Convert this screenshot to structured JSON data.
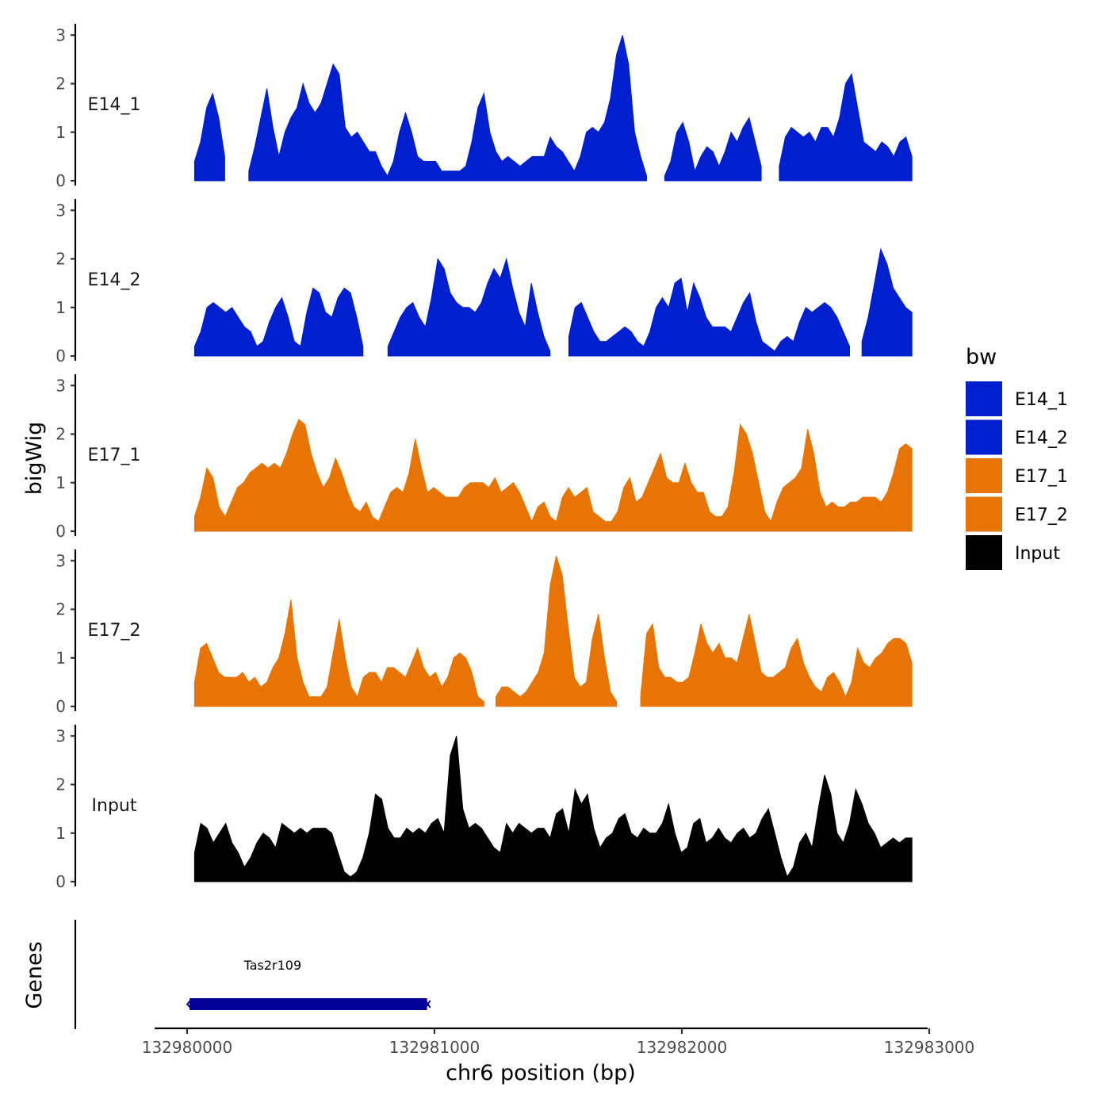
{
  "chart_data": {
    "type": "area",
    "ylabel": "bigWig",
    "xlabel": "chr6 position (bp)",
    "chromosome": "chr6",
    "xlim": [
      132979800,
      132983100
    ],
    "ylim": [
      0,
      3.2
    ],
    "y_ticks": [
      "0",
      "1",
      "2",
      "3"
    ],
    "x_ticks": [
      {
        "value": 132980000,
        "label": "132980000"
      },
      {
        "value": 132981000,
        "label": "132981000"
      },
      {
        "value": 132982000,
        "label": "132982000"
      },
      {
        "value": 132983000,
        "label": "132983000"
      }
    ],
    "x_start": 132980030,
    "x_end": 132982930,
    "legend": {
      "title": "bw",
      "entries": [
        {
          "label": "E14_1",
          "color": "#0020d0"
        },
        {
          "label": "E14_2",
          "color": "#0020d0"
        },
        {
          "label": "E17_1",
          "color": "#e87405"
        },
        {
          "label": "E17_2",
          "color": "#e87405"
        },
        {
          "label": "Input",
          "color": "#000000"
        }
      ]
    },
    "series": [
      {
        "name": "E14_1",
        "color": "#0020d0",
        "values": [
          0.4,
          0.8,
          1.5,
          1.8,
          1.3,
          0.5,
          null,
          null,
          null,
          0.2,
          0.7,
          1.3,
          1.9,
          1.1,
          0.5,
          1.0,
          1.3,
          1.5,
          2.0,
          1.6,
          1.4,
          1.6,
          2.0,
          2.4,
          2.2,
          1.1,
          0.9,
          1.0,
          0.8,
          0.6,
          0.6,
          0.3,
          0.1,
          0.4,
          1.0,
          1.4,
          1.0,
          0.5,
          0.4,
          0.4,
          0.4,
          0.2,
          0.2,
          0.2,
          0.2,
          0.3,
          0.8,
          1.5,
          1.8,
          1.0,
          0.6,
          0.4,
          0.5,
          0.4,
          0.3,
          0.4,
          0.5,
          0.5,
          0.5,
          0.9,
          0.7,
          0.6,
          0.4,
          0.2,
          0.5,
          1.0,
          1.1,
          1.0,
          1.2,
          1.7,
          2.6,
          3.0,
          2.4,
          1.0,
          0.5,
          0.1,
          null,
          null,
          0.1,
          0.4,
          1.0,
          1.2,
          0.8,
          0.2,
          0.5,
          0.7,
          0.6,
          0.3,
          0.6,
          1.0,
          0.8,
          1.1,
          1.3,
          0.8,
          0.3,
          null,
          null,
          0.3,
          0.9,
          1.1,
          1.0,
          0.9,
          1.0,
          0.8,
          1.1,
          1.1,
          0.9,
          1.3,
          2.0,
          2.2,
          1.5,
          0.8,
          0.7,
          0.6,
          0.8,
          0.7,
          0.5,
          0.8,
          0.9,
          0.5
        ]
      },
      {
        "name": "E14_2",
        "color": "#0020d0",
        "values": [
          0.2,
          0.5,
          1.0,
          1.1,
          1.0,
          0.9,
          1.0,
          0.8,
          0.6,
          0.5,
          0.2,
          0.3,
          0.7,
          1.0,
          1.2,
          0.8,
          0.3,
          0.2,
          0.9,
          1.4,
          1.3,
          0.9,
          0.8,
          1.2,
          1.4,
          1.3,
          0.8,
          0.2,
          null,
          null,
          null,
          0.2,
          0.5,
          0.8,
          1.0,
          1.1,
          0.8,
          0.6,
          1.2,
          2.0,
          1.8,
          1.3,
          1.1,
          1.0,
          1.0,
          0.9,
          1.1,
          1.5,
          1.8,
          1.6,
          2.0,
          1.4,
          0.9,
          0.6,
          1.5,
          0.9,
          0.4,
          0.1,
          null,
          null,
          0.4,
          1.0,
          1.1,
          0.8,
          0.5,
          0.3,
          0.3,
          0.4,
          0.5,
          0.6,
          0.5,
          0.3,
          0.2,
          0.5,
          1.0,
          1.2,
          1.0,
          1.5,
          1.6,
          0.9,
          1.5,
          1.2,
          0.8,
          0.6,
          0.6,
          0.6,
          0.5,
          0.8,
          1.1,
          1.3,
          0.7,
          0.3,
          0.2,
          0.1,
          0.3,
          0.4,
          0.3,
          0.7,
          1.0,
          0.9,
          1.0,
          1.1,
          1.0,
          0.8,
          0.5,
          0.2,
          null,
          0.3,
          0.8,
          1.5,
          2.2,
          1.9,
          1.4,
          1.2,
          1.0,
          0.9
        ]
      },
      {
        "name": "E17_1",
        "color": "#e87405",
        "values": [
          0.3,
          0.7,
          1.3,
          1.1,
          0.5,
          0.3,
          0.6,
          0.9,
          1.0,
          1.2,
          1.3,
          1.4,
          1.3,
          1.4,
          1.3,
          1.6,
          2.0,
          2.3,
          2.2,
          1.6,
          1.2,
          0.9,
          1.1,
          1.5,
          1.2,
          0.8,
          0.5,
          0.4,
          0.6,
          0.3,
          0.2,
          0.5,
          0.8,
          0.9,
          0.8,
          1.2,
          1.9,
          1.3,
          0.8,
          0.9,
          0.8,
          0.7,
          0.7,
          0.7,
          0.9,
          1.0,
          1.0,
          1.0,
          0.9,
          1.1,
          0.8,
          0.9,
          1.0,
          0.8,
          0.5,
          0.2,
          0.5,
          0.6,
          0.3,
          0.2,
          0.7,
          0.9,
          0.7,
          0.8,
          0.9,
          0.4,
          0.3,
          0.2,
          0.2,
          0.4,
          0.9,
          1.1,
          0.6,
          0.7,
          1.0,
          1.3,
          1.6,
          1.1,
          1.0,
          1.0,
          1.4,
          1.0,
          0.8,
          0.8,
          0.4,
          0.3,
          0.3,
          0.5,
          1.2,
          2.2,
          2.0,
          1.6,
          1.0,
          0.4,
          0.2,
          0.6,
          0.9,
          1.0,
          1.1,
          1.3,
          2.1,
          1.6,
          0.8,
          0.5,
          0.6,
          0.5,
          0.5,
          0.6,
          0.6,
          0.7,
          0.7,
          0.7,
          0.6,
          0.8,
          1.2,
          1.7,
          1.8,
          1.7
        ]
      },
      {
        "name": "E17_2",
        "color": "#e87405",
        "values": [
          0.5,
          1.2,
          1.3,
          1.0,
          0.7,
          0.6,
          0.6,
          0.6,
          0.7,
          0.5,
          0.6,
          0.4,
          0.5,
          0.8,
          1.0,
          1.5,
          2.2,
          1.0,
          0.5,
          0.2,
          0.2,
          0.2,
          0.4,
          1.1,
          1.8,
          1.0,
          0.4,
          0.2,
          0.6,
          0.7,
          0.7,
          0.5,
          0.8,
          0.8,
          0.7,
          0.6,
          0.9,
          1.2,
          0.8,
          0.6,
          0.7,
          0.4,
          0.6,
          1.0,
          1.1,
          1.0,
          0.7,
          0.2,
          0.1,
          null,
          0.2,
          0.4,
          0.4,
          0.3,
          0.2,
          0.3,
          0.5,
          0.7,
          1.1,
          2.5,
          3.1,
          2.7,
          1.6,
          0.6,
          0.4,
          0.5,
          1.4,
          1.9,
          1.0,
          0.3,
          0.1,
          null,
          null,
          null,
          0.2,
          1.5,
          1.7,
          0.8,
          0.6,
          0.6,
          0.5,
          0.5,
          0.6,
          1.1,
          1.7,
          1.3,
          1.1,
          1.3,
          1.0,
          1.0,
          0.9,
          1.4,
          1.9,
          1.3,
          0.7,
          0.6,
          0.6,
          0.7,
          0.8,
          1.2,
          1.4,
          0.9,
          0.6,
          0.4,
          0.3,
          0.6,
          0.7,
          0.5,
          0.2,
          0.5,
          1.2,
          0.9,
          0.8,
          1.0,
          1.1,
          1.3,
          1.4,
          1.4,
          1.3,
          0.9
        ]
      },
      {
        "name": "Input",
        "color": "#000000",
        "values": [
          0.6,
          1.2,
          1.1,
          0.8,
          1.0,
          1.2,
          0.8,
          0.6,
          0.3,
          0.5,
          0.8,
          1.0,
          0.9,
          0.7,
          1.2,
          1.1,
          1.0,
          1.1,
          1.0,
          1.1,
          1.1,
          1.1,
          1.0,
          0.6,
          0.2,
          0.1,
          0.2,
          0.5,
          1.0,
          1.8,
          1.7,
          1.1,
          0.9,
          0.9,
          1.1,
          1.0,
          1.1,
          1.0,
          1.2,
          1.3,
          1.0,
          2.6,
          3.0,
          1.5,
          1.1,
          1.2,
          1.1,
          0.9,
          0.7,
          0.6,
          1.2,
          1.0,
          1.2,
          1.1,
          1.0,
          1.1,
          1.1,
          0.9,
          1.4,
          1.5,
          1.0,
          1.9,
          1.6,
          1.8,
          1.1,
          0.7,
          0.9,
          1.0,
          1.3,
          1.4,
          1.0,
          0.9,
          1.1,
          1.0,
          1.0,
          1.2,
          1.6,
          1.0,
          0.6,
          0.7,
          1.2,
          1.3,
          0.8,
          0.9,
          1.1,
          0.9,
          0.8,
          1.0,
          1.1,
          0.9,
          1.0,
          1.3,
          1.5,
          1.0,
          0.5,
          0.1,
          0.3,
          0.8,
          1.0,
          0.7,
          1.5,
          2.2,
          1.8,
          1.0,
          0.8,
          1.2,
          1.9,
          1.6,
          1.2,
          1.0,
          0.7,
          0.8,
          0.9,
          0.8,
          0.9,
          0.9
        ]
      }
    ],
    "genes": {
      "title": "Genes",
      "items": [
        {
          "name": "Tas2r109",
          "start": 132980010,
          "end": 132980970,
          "color": "#000099"
        }
      ]
    }
  }
}
